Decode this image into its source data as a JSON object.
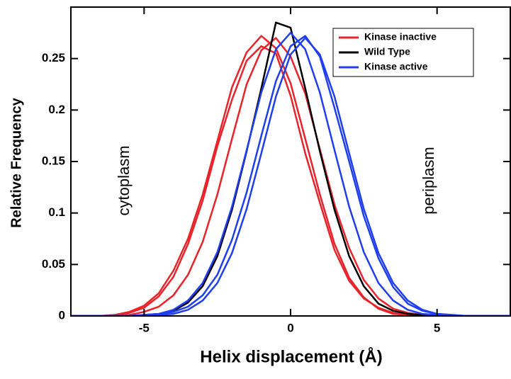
{
  "chart_data": {
    "type": "line",
    "xlabel": "Helix displacement (Å)",
    "ylabel": "Relative Frequency",
    "annotations": [
      "cytoplasm",
      "periplasm"
    ],
    "x": [
      -7.5,
      -7,
      -6.5,
      -6,
      -5.5,
      -5,
      -4.5,
      -4,
      -3.5,
      -3,
      -2.5,
      -2,
      -1.5,
      -1,
      -0.5,
      0,
      0.5,
      1,
      1.5,
      2,
      2.5,
      3,
      3.5,
      4,
      4.5,
      5,
      5.5,
      6,
      6.5,
      7,
      7.5
    ],
    "xlim": [
      -7.5,
      7.5
    ],
    "xticks": [
      -5,
      0,
      5
    ],
    "ylim": [
      0,
      0.3
    ],
    "yticks": [
      0,
      0.05,
      0.1,
      0.15,
      0.2,
      0.25
    ],
    "legend": "top-right",
    "series": [
      {
        "name": "Kinase inactive",
        "color": "#e8232a",
        "lines": [
          [
            0,
            0,
            0,
            0.001,
            0.003,
            0.008,
            0.019,
            0.038,
            0.07,
            0.112,
            0.165,
            0.21,
            0.248,
            0.262,
            0.255,
            0.214,
            0.158,
            0.11,
            0.064,
            0.034,
            0.017,
            0.008,
            0.003,
            0.001,
            0,
            0,
            0,
            0,
            0,
            0,
            0
          ],
          [
            0,
            0,
            0,
            0,
            0.001,
            0.004,
            0.009,
            0.02,
            0.04,
            0.072,
            0.118,
            0.172,
            0.225,
            0.258,
            0.27,
            0.252,
            0.216,
            0.162,
            0.108,
            0.066,
            0.035,
            0.017,
            0.007,
            0.003,
            0.001,
            0,
            0,
            0,
            0,
            0,
            0
          ],
          [
            0,
            0,
            0,
            0.001,
            0.004,
            0.01,
            0.022,
            0.044,
            0.075,
            0.118,
            0.17,
            0.222,
            0.256,
            0.272,
            0.26,
            0.226,
            0.172,
            0.118,
            0.07,
            0.037,
            0.018,
            0.007,
            0.002,
            0.001,
            0,
            0,
            0,
            0,
            0,
            0,
            0
          ]
        ]
      },
      {
        "name": "Wild Type",
        "color": "#000000",
        "lines": [
          [
            0,
            0,
            0,
            0,
            0,
            0.001,
            0.002,
            0.005,
            0.013,
            0.029,
            0.058,
            0.103,
            0.16,
            0.221,
            0.285,
            0.28,
            0.221,
            0.16,
            0.103,
            0.058,
            0.029,
            0.012,
            0.005,
            0.002,
            0.001,
            0,
            0,
            0,
            0,
            0,
            0
          ]
        ]
      },
      {
        "name": "Kinase active",
        "color": "#1f3ef0",
        "lines": [
          [
            0,
            0,
            0,
            0,
            0,
            0,
            0.001,
            0.002,
            0.006,
            0.015,
            0.032,
            0.061,
            0.104,
            0.158,
            0.213,
            0.254,
            0.27,
            0.254,
            0.213,
            0.158,
            0.104,
            0.061,
            0.032,
            0.015,
            0.006,
            0.002,
            0.001,
            0,
            0,
            0,
            0
          ],
          [
            0,
            0,
            0,
            0,
            0,
            0.001,
            0.002,
            0.006,
            0.015,
            0.032,
            0.062,
            0.106,
            0.161,
            0.217,
            0.259,
            0.275,
            0.259,
            0.217,
            0.161,
            0.106,
            0.062,
            0.032,
            0.015,
            0.006,
            0.002,
            0.001,
            0,
            0,
            0,
            0,
            0
          ],
          [
            0,
            0,
            0,
            0,
            0,
            0.001,
            0.002,
            0.004,
            0.009,
            0.02,
            0.04,
            0.074,
            0.12,
            0.175,
            0.228,
            0.262,
            0.272,
            0.252,
            0.202,
            0.15,
            0.097,
            0.056,
            0.028,
            0.012,
            0.005,
            0.002,
            0.001,
            0,
            0,
            0,
            0
          ]
        ]
      }
    ]
  }
}
